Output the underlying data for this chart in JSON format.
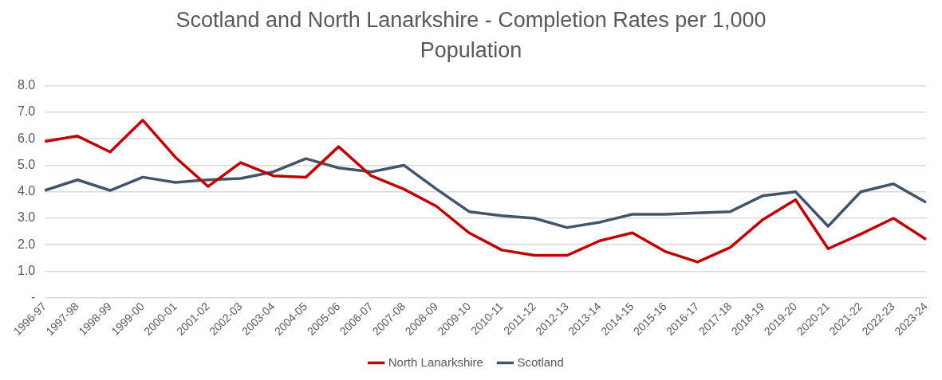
{
  "chart_data": {
    "type": "line",
    "title": "Scotland and North Lanarkshire - Completion Rates per 1,000 Population",
    "categories": [
      "1996-97",
      "1997-98",
      "1998-99",
      "1999-00",
      "2000-01",
      "2001-02",
      "2002-03",
      "2003-04",
      "2004-05",
      "2005-06",
      "2006-07",
      "2007-08",
      "2008-09",
      "2009-10",
      "2010-11",
      "2011-12",
      "2012-13",
      "2013-14",
      "2014-15",
      "2015-16",
      "2016-17",
      "2017-18",
      "2018-19",
      "2019-20",
      "2020-21",
      "2021-22",
      "2022-23",
      "2023-24"
    ],
    "series": [
      {
        "name": "North Lanarkshire",
        "color": "#c00000",
        "values": [
          5.9,
          6.1,
          5.5,
          6.7,
          5.3,
          4.2,
          5.1,
          4.6,
          4.55,
          5.7,
          4.6,
          4.1,
          3.45,
          2.45,
          1.8,
          1.6,
          1.6,
          2.15,
          2.45,
          1.75,
          1.35,
          1.9,
          2.95,
          3.7,
          1.85,
          2.4,
          3.0,
          2.2
        ]
      },
      {
        "name": "Scotland",
        "color": "#44546a",
        "values": [
          4.05,
          4.45,
          4.05,
          4.55,
          4.35,
          4.45,
          4.5,
          4.75,
          5.25,
          4.9,
          4.75,
          5.0,
          4.1,
          3.25,
          3.1,
          3.0,
          2.65,
          2.85,
          3.15,
          3.15,
          3.2,
          3.25,
          3.85,
          4.0,
          2.7,
          4.0,
          4.3,
          3.6
        ]
      }
    ],
    "ylim": [
      0,
      8
    ],
    "yticks": [
      {
        "value": 0,
        "label": "-"
      },
      {
        "value": 1,
        "label": "1.0"
      },
      {
        "value": 2,
        "label": "2.0"
      },
      {
        "value": 3,
        "label": "3.0"
      },
      {
        "value": 4,
        "label": "4.0"
      },
      {
        "value": 5,
        "label": "5.0"
      },
      {
        "value": 6,
        "label": "6.0"
      },
      {
        "value": 7,
        "label": "7.0"
      },
      {
        "value": 8,
        "label": "8.0"
      }
    ],
    "grid": "y",
    "legend": "bottom",
    "marker": "none",
    "line_style": "solid"
  }
}
